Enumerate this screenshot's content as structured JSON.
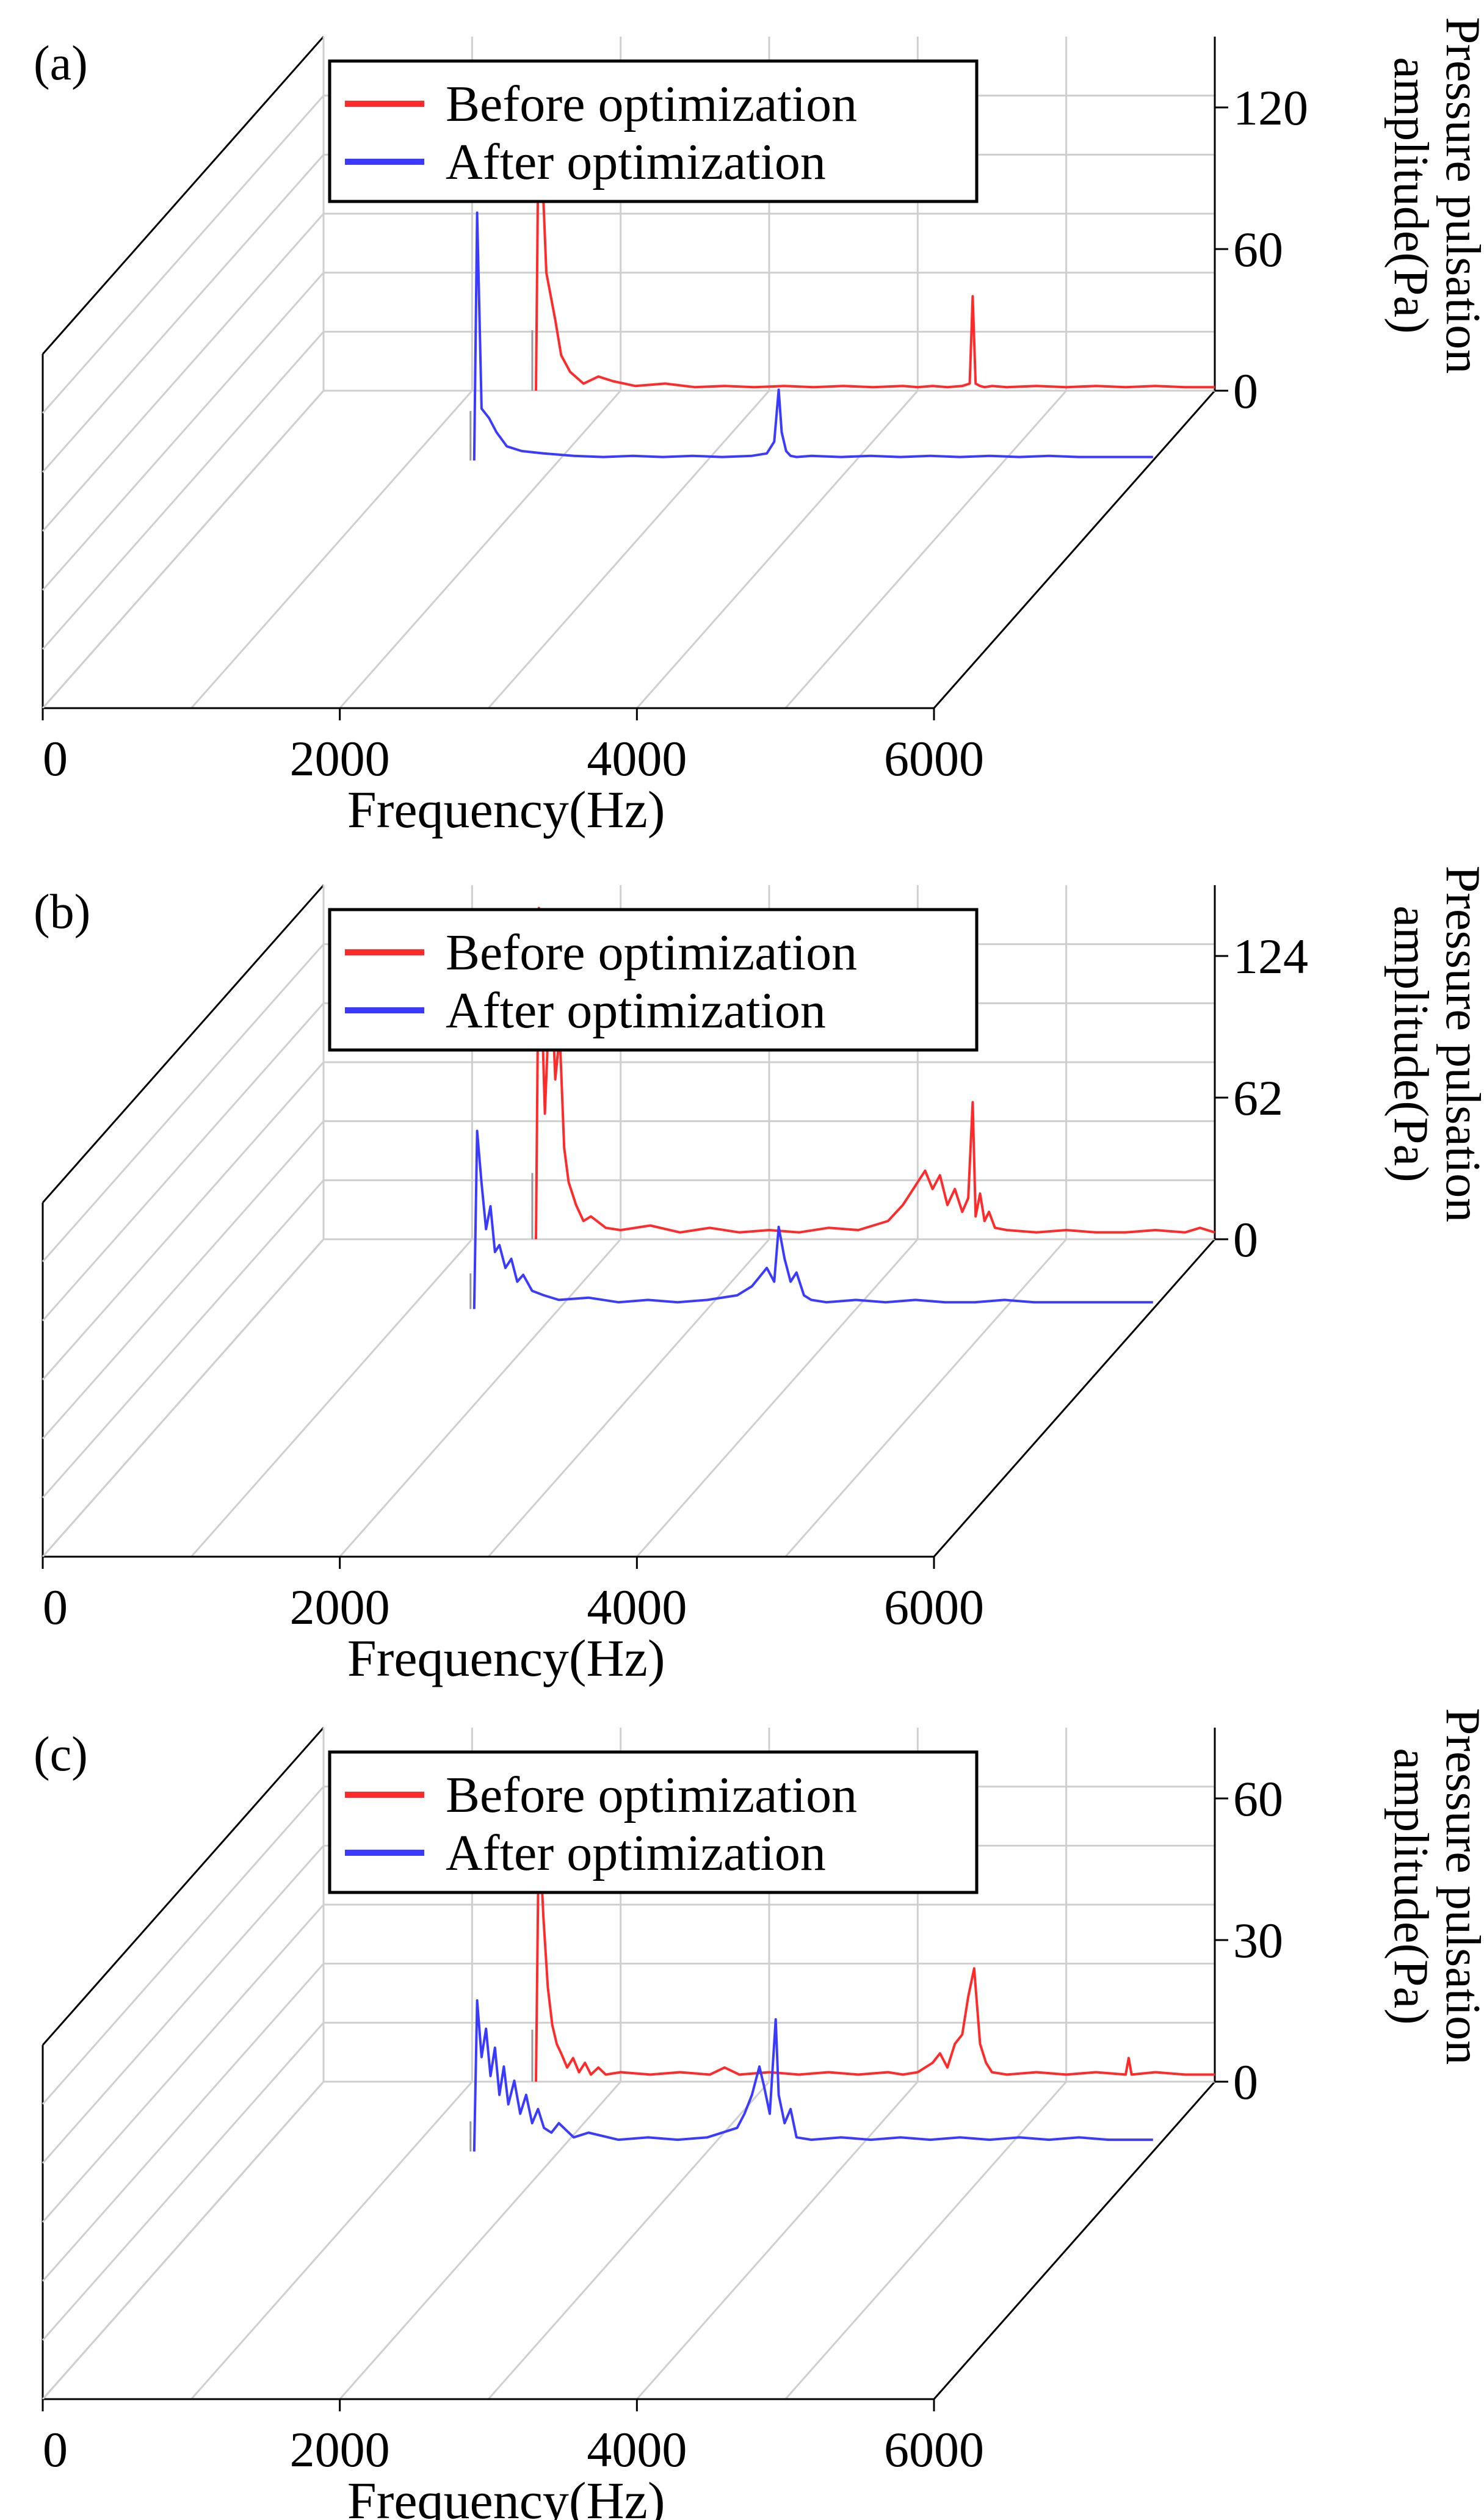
{
  "chart_data": [
    {
      "type": "line",
      "panel": "(a)",
      "xlabel": "Frequency(Hz)",
      "ylabel_line1": "Pressure pulsation",
      "ylabel_line2": "amplitude(Pa)",
      "xlim": [
        0,
        6000
      ],
      "xticks": [
        "0",
        "2000",
        "4000",
        "6000"
      ],
      "ylim": [
        0,
        150
      ],
      "yticks": [
        {
          "value": 0,
          "label": "0"
        },
        {
          "value": 60,
          "label": "60"
        },
        {
          "value": 120,
          "label": "120"
        }
      ],
      "legend": [
        "Before optimization",
        "After optimization"
      ],
      "series": [
        {
          "name": "Before optimization",
          "color": "#ff2a2a",
          "x": [
            1430,
            1450,
            1500,
            1560,
            1600,
            1660,
            1750,
            1850,
            1950,
            2100,
            2300,
            2500,
            2700,
            2900,
            3100,
            3300,
            3500,
            3700,
            3900,
            4000,
            4100,
            4200,
            4300,
            4350,
            4370,
            4390,
            4420,
            4450,
            4500,
            4600,
            4800,
            5000,
            5200,
            5400,
            5600,
            5800,
            6000
          ],
          "y": [
            0,
            128,
            50,
            30,
            15,
            8,
            3,
            6,
            4,
            2,
            3,
            1.5,
            2,
            1.5,
            2,
            1.5,
            2,
            1.5,
            2,
            1.5,
            2,
            1.5,
            2,
            3,
            40,
            3,
            2,
            1.5,
            2,
            1.5,
            2,
            1.5,
            2,
            1.5,
            2,
            1.5,
            1.5
          ]
        },
        {
          "name": "After optimization",
          "color": "#3b3bff",
          "x": [
            1430,
            1450,
            1480,
            1530,
            1580,
            1650,
            1750,
            1900,
            2100,
            2300,
            2500,
            2700,
            2900,
            3100,
            3300,
            3400,
            3450,
            3480,
            3500,
            3530,
            3560,
            3600,
            3700,
            3900,
            4100,
            4300,
            4500,
            4700,
            4900,
            5100,
            5300,
            5500,
            5700,
            6000
          ],
          "y": [
            0,
            105,
            22,
            18,
            12,
            6,
            4,
            3,
            2,
            1.5,
            2,
            1.5,
            2,
            1.5,
            2,
            3,
            8,
            30,
            12,
            4,
            2,
            1.5,
            2,
            1.5,
            2,
            1.5,
            2,
            1.5,
            2,
            1.5,
            2,
            1.5,
            1.5,
            1.5
          ]
        }
      ]
    },
    {
      "type": "line",
      "panel": "(b)",
      "xlabel": "Frequency(Hz)",
      "ylabel_line1": "Pressure pulsation",
      "ylabel_line2": "amplitude(Pa)",
      "xlim": [
        0,
        6000
      ],
      "xticks": [
        "0",
        "2000",
        "4000",
        "6000"
      ],
      "ylim": [
        0,
        155
      ],
      "yticks": [
        {
          "value": 0,
          "label": "0"
        },
        {
          "value": 62,
          "label": "62"
        },
        {
          "value": 124,
          "label": "124"
        }
      ],
      "legend": [
        "Before optimization",
        "After optimization"
      ],
      "series": [
        {
          "name": "Before optimization",
          "color": "#ff2a2a",
          "x": [
            1430,
            1450,
            1490,
            1530,
            1560,
            1590,
            1620,
            1650,
            1700,
            1750,
            1800,
            1900,
            2000,
            2200,
            2400,
            2600,
            2800,
            3000,
            3200,
            3400,
            3600,
            3800,
            3900,
            3950,
            4000,
            4050,
            4100,
            4150,
            4200,
            4250,
            4300,
            4340,
            4370,
            4390,
            4420,
            4450,
            4480,
            4520,
            4600,
            4800,
            5000,
            5200,
            5400,
            5600,
            5800,
            5900,
            6000
          ],
          "y": [
            0,
            145,
            55,
            120,
            70,
            90,
            40,
            25,
            15,
            8,
            10,
            5,
            4,
            6,
            3,
            5,
            3,
            4,
            3,
            5,
            4,
            8,
            15,
            20,
            25,
            30,
            22,
            28,
            15,
            22,
            12,
            18,
            60,
            10,
            20,
            8,
            12,
            5,
            4,
            3,
            4,
            3,
            3,
            4,
            3,
            5,
            3
          ]
        },
        {
          "name": "After optimization",
          "color": "#3b3bff",
          "x": [
            1430,
            1450,
            1480,
            1510,
            1540,
            1570,
            1600,
            1640,
            1680,
            1720,
            1760,
            1820,
            1900,
            2000,
            2200,
            2400,
            2600,
            2800,
            3000,
            3200,
            3300,
            3350,
            3400,
            3450,
            3480,
            3520,
            3560,
            3600,
            3650,
            3700,
            3800,
            4000,
            4200,
            4400,
            4600,
            4800,
            5000,
            5200,
            5400,
            5600,
            5800,
            6000
          ],
          "y": [
            0,
            78,
            55,
            35,
            45,
            25,
            28,
            18,
            22,
            12,
            15,
            8,
            6,
            4,
            5,
            3,
            4,
            3,
            4,
            6,
            10,
            14,
            18,
            12,
            36,
            22,
            12,
            16,
            6,
            4,
            3,
            4,
            3,
            4,
            3,
            3,
            4,
            3,
            3,
            3,
            3,
            3
          ]
        }
      ]
    },
    {
      "type": "line",
      "panel": "(c)",
      "xlabel": "Frequency(Hz)",
      "ylabel_line1": "Pressure pulsation",
      "ylabel_line2": "amplitude(Pa)",
      "xlim": [
        0,
        6000
      ],
      "xticks": [
        "0",
        "2000",
        "4000",
        "6000"
      ],
      "ylim": [
        0,
        75
      ],
      "yticks": [
        {
          "value": 0,
          "label": "0"
        },
        {
          "value": 30,
          "label": "30"
        },
        {
          "value": 60,
          "label": "60"
        }
      ],
      "legend": [
        "Before optimization",
        "After optimization"
      ],
      "series": [
        {
          "name": "Before optimization",
          "color": "#ff2a2a",
          "x": [
            1430,
            1450,
            1480,
            1510,
            1540,
            1570,
            1600,
            1640,
            1680,
            1720,
            1760,
            1800,
            1850,
            1900,
            2000,
            2200,
            2400,
            2600,
            2700,
            2800,
            3000,
            3200,
            3400,
            3600,
            3800,
            3900,
            4000,
            4100,
            4150,
            4200,
            4250,
            4300,
            4340,
            4380,
            4420,
            4460,
            4500,
            4600,
            4800,
            5000,
            5200,
            5400,
            5420,
            5440,
            5600,
            5800,
            6000
          ],
          "y": [
            0,
            55,
            35,
            20,
            12,
            8,
            6,
            3,
            5,
            2,
            4,
            1.5,
            3,
            1.5,
            2,
            1.5,
            2,
            1.5,
            3,
            1.5,
            2,
            1.5,
            2,
            1.5,
            2,
            1.5,
            2,
            4,
            6,
            3,
            8,
            10,
            18,
            24,
            8,
            4,
            2,
            1.5,
            2,
            1.5,
            2,
            1.5,
            5,
            1.5,
            2,
            1.5,
            1.5
          ]
        },
        {
          "name": "After optimization",
          "color": "#3b3bff",
          "x": [
            1430,
            1450,
            1480,
            1510,
            1540,
            1570,
            1600,
            1630,
            1660,
            1700,
            1740,
            1780,
            1820,
            1860,
            1900,
            1950,
            2000,
            2100,
            2200,
            2400,
            2600,
            2800,
            3000,
            3200,
            3250,
            3300,
            3350,
            3380,
            3420,
            3460,
            3480,
            3520,
            3560,
            3600,
            3700,
            3900,
            4100,
            4300,
            4500,
            4700,
            4900,
            5100,
            5300,
            5500,
            5700,
            6000
          ],
          "y": [
            0,
            32,
            20,
            26,
            16,
            22,
            12,
            18,
            10,
            15,
            8,
            12,
            6,
            9,
            5,
            4,
            6,
            3,
            4,
            2.5,
            3,
            2.5,
            3,
            5,
            8,
            12,
            18,
            14,
            8,
            28,
            12,
            6,
            9,
            3,
            2.5,
            3,
            2.5,
            3,
            2.5,
            3,
            2.5,
            3,
            2.5,
            3,
            2.5,
            2.5
          ]
        }
      ]
    }
  ]
}
